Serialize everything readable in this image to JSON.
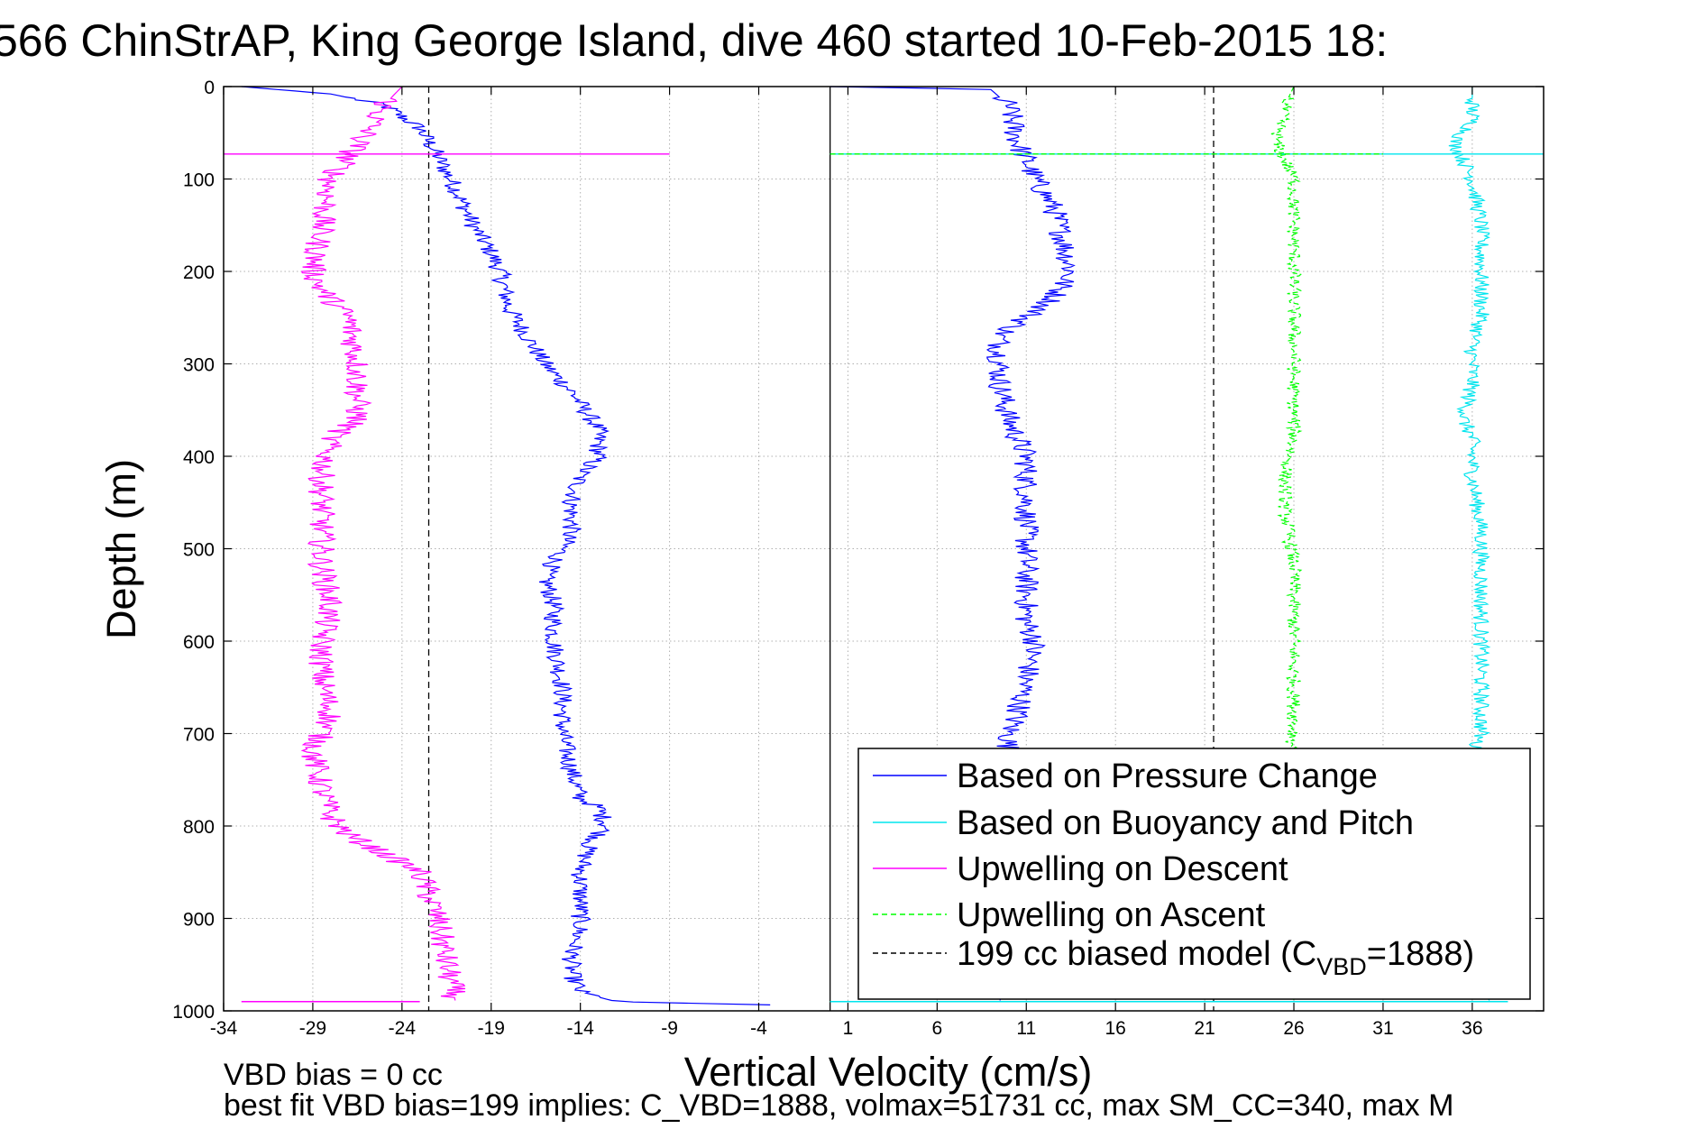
{
  "chart_data": {
    "type": "line",
    "title": "566 ChinStrAP, King George Island, dive 460 started 10-Feb-2015 18:",
    "xlabel": "Vertical Velocity (cm/s)",
    "ylabel": "Depth (m)",
    "xlim": [
      -34,
      40
    ],
    "ylim": [
      1000,
      0
    ],
    "y_reversed": true,
    "grid": true,
    "x_ticks": [
      -34,
      -29,
      -24,
      -19,
      -14,
      -9,
      -4,
      1,
      6,
      11,
      16,
      21,
      26,
      31,
      36
    ],
    "y_ticks": [
      0,
      100,
      200,
      300,
      400,
      500,
      600,
      700,
      800,
      900,
      1000
    ],
    "x_tick_labels": [
      "-34",
      "-29",
      "-24",
      "-19",
      "-14",
      "-9",
      "-4",
      "1",
      "6",
      "11",
      "16",
      "21",
      "26",
      "31",
      "36"
    ],
    "y_tick_labels": [
      "0",
      "100",
      "200",
      "300",
      "400",
      "500",
      "600",
      "700",
      "800",
      "900",
      "1000"
    ],
    "legend_position": "bottom-right",
    "reference_lines": [
      {
        "x": 0,
        "style": "solid",
        "color": "#000000"
      },
      {
        "x": -22.5,
        "style": "dashed",
        "color": "#000000"
      },
      {
        "x": 21.5,
        "style": "dashed",
        "color": "#000000"
      }
    ],
    "series": [
      {
        "name": "Based on Pressure Change",
        "side": "descent",
        "color": "#0000ff",
        "style": "solid",
        "noise": 0.55,
        "x": [
          -33,
          -28,
          -25,
          -23,
          -22,
          -21,
          -20,
          -19,
          -18.5,
          -18,
          -17,
          -16,
          -14.5,
          -13,
          -13,
          -14,
          -14.5,
          -14.5,
          -15,
          -16,
          -15.5,
          -15.5,
          -15,
          -15,
          -14.5,
          -14,
          -13,
          -12.5,
          -13.5,
          -14,
          -14,
          -14,
          -14.5,
          -14.5,
          -14,
          -12,
          0
        ],
        "y": [
          0,
          8,
          20,
          45,
          75,
          110,
          150,
          180,
          200,
          240,
          270,
          300,
          330,
          370,
          400,
          420,
          450,
          480,
          500,
          530,
          560,
          600,
          650,
          700,
          740,
          770,
          780,
          800,
          820,
          850,
          880,
          910,
          940,
          960,
          980,
          990,
          995
        ]
      },
      {
        "name": "Based on Pressure Change",
        "side": "ascent",
        "color": "#0000ff",
        "style": "solid",
        "noise": 0.7,
        "x": [
          0,
          9,
          10,
          10.5,
          11.5,
          12.5,
          13,
          13.5,
          12.5,
          11,
          9.5,
          9.5,
          10,
          11,
          11,
          11,
          11,
          11,
          11.5,
          11,
          10.5,
          10,
          10,
          9.5
        ],
        "y": [
          0,
          3,
          20,
          60,
          100,
          130,
          160,
          200,
          230,
          250,
          270,
          320,
          360,
          400,
          450,
          500,
          550,
          580,
          600,
          640,
          680,
          700,
          960,
          990
        ]
      },
      {
        "name": "Based on Buoyancy and Pitch",
        "side": "ascent",
        "color": "#00e5ee",
        "style": "solid",
        "noise": 0.45,
        "x": [
          36,
          36,
          36,
          35,
          36,
          36.5,
          36.5,
          36.5,
          36,
          36,
          35.5,
          36,
          36,
          36.5,
          36.5,
          36.5,
          36.5,
          36.5,
          36,
          36,
          36.5,
          36,
          37
        ],
        "y": [
          0,
          20,
          40,
          60,
          100,
          150,
          200,
          250,
          280,
          320,
          360,
          380,
          420,
          480,
          540,
          600,
          640,
          700,
          720,
          760,
          800,
          960,
          990
        ]
      },
      {
        "name": "Upwelling on Descent",
        "side": "descent",
        "color": "#ff00ff",
        "style": "solid",
        "noise": 0.75,
        "x": [
          -24,
          -25,
          -26,
          -28,
          -28.5,
          -29,
          -28.5,
          -27,
          -26.5,
          -26.5,
          -28,
          -28.5,
          -28.5,
          -28.5,
          -28,
          -28.5,
          -28.5,
          -28,
          -29,
          -28.5,
          -28,
          -27,
          -23,
          -22,
          -21.5,
          -21
        ],
        "y": [
          0,
          20,
          50,
          100,
          150,
          200,
          220,
          250,
          300,
          360,
          380,
          420,
          480,
          520,
          560,
          600,
          640,
          680,
          720,
          760,
          790,
          810,
          850,
          900,
          950,
          990
        ]
      },
      {
        "name": "Upwelling on Ascent",
        "side": "ascent",
        "color": "#00ff00",
        "style": "dashed",
        "noise": 0.4,
        "x": [
          26,
          25.5,
          25,
          26,
          26,
          26,
          26,
          26,
          26,
          26,
          26,
          25.5,
          25.5,
          26,
          26,
          26,
          26,
          25.5,
          25.5,
          26
        ],
        "y": [
          0,
          20,
          60,
          100,
          150,
          200,
          250,
          280,
          320,
          360,
          380,
          420,
          460,
          520,
          580,
          640,
          700,
          760,
          850,
          990
        ]
      }
    ],
    "spikes": [
      {
        "series": "Upwelling on Descent",
        "y": 73,
        "x": [
          -34,
          -9
        ]
      },
      {
        "series": "Based on Buoyancy and Pitch",
        "y": 73,
        "x": [
          0,
          40
        ]
      },
      {
        "series": "Upwelling on Ascent",
        "y": 73,
        "x": [
          0,
          31
        ]
      },
      {
        "series": "Upwelling on Descent",
        "y": 990,
        "x": [
          -33,
          -23
        ]
      },
      {
        "series": "Upwelling on Ascent",
        "y": 990,
        "x": [
          0,
          31
        ]
      },
      {
        "series": "Based on Buoyancy and Pitch",
        "y": 990,
        "x": [
          0,
          38
        ]
      }
    ],
    "legend": [
      {
        "label": "Based on Pressure Change",
        "color": "#0000ff",
        "style": "solid"
      },
      {
        "label": "Based on Buoyancy and Pitch",
        "color": "#00e5ee",
        "style": "solid"
      },
      {
        "label": "Upwelling on Descent",
        "color": "#ff00ff",
        "style": "solid"
      },
      {
        "label": "Upwelling on Ascent",
        "color": "#00ff00",
        "style": "dashed"
      },
      {
        "label": "199 cc biased model (C",
        "label_sub": "VBD",
        "label_tail": "=1888)",
        "color": "#000000",
        "style": "dashed"
      }
    ]
  },
  "footer": {
    "line1": "VBD bias = 0 cc",
    "line2": "best fit VBD bias=199 implies: C_VBD=1888, volmax=51731 cc, max SM_CC=340, max M"
  }
}
